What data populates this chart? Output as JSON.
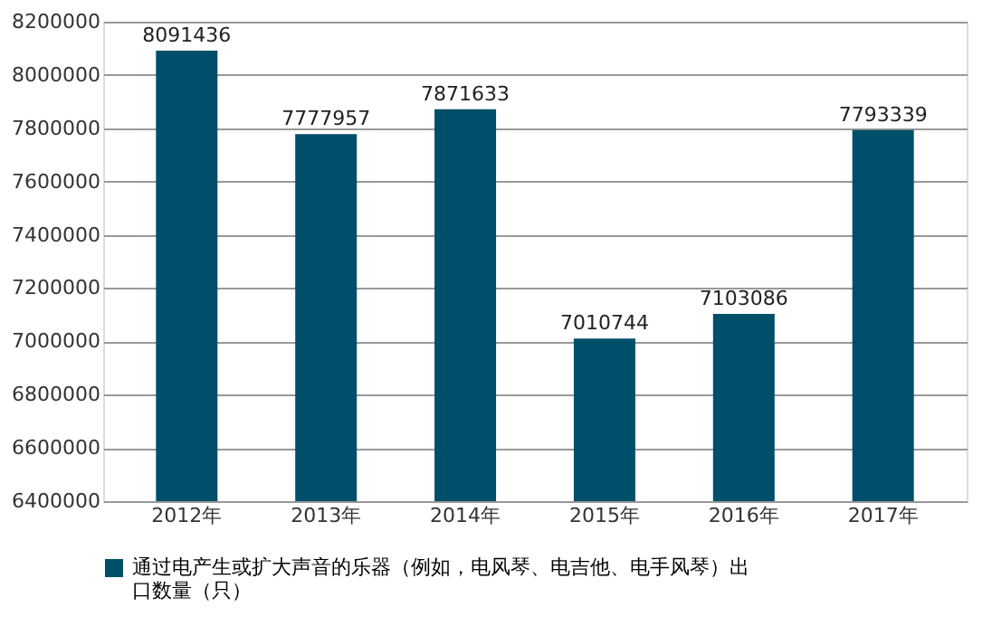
{
  "chart_data": {
    "type": "bar",
    "categories": [
      "2012年",
      "2013年",
      "2014年",
      "2015年",
      "2016年",
      "2017年"
    ],
    "series": [
      {
        "name": "通过电产生或扩大声音的乐器（例如，电风琴、电吉他、电手风琴）出口数量（只）",
        "color": "#004f6a",
        "values": [
          8091436,
          7777957,
          7871633,
          7010744,
          7103086,
          7793339
        ]
      }
    ],
    "ylim": [
      6400000,
      8200000
    ],
    "yticks": [
      6400000,
      6600000,
      6800000,
      7000000,
      7200000,
      7400000,
      7600000,
      7800000,
      8000000,
      8200000
    ],
    "grid": "y",
    "legend": "bottom",
    "data_labels": true
  }
}
